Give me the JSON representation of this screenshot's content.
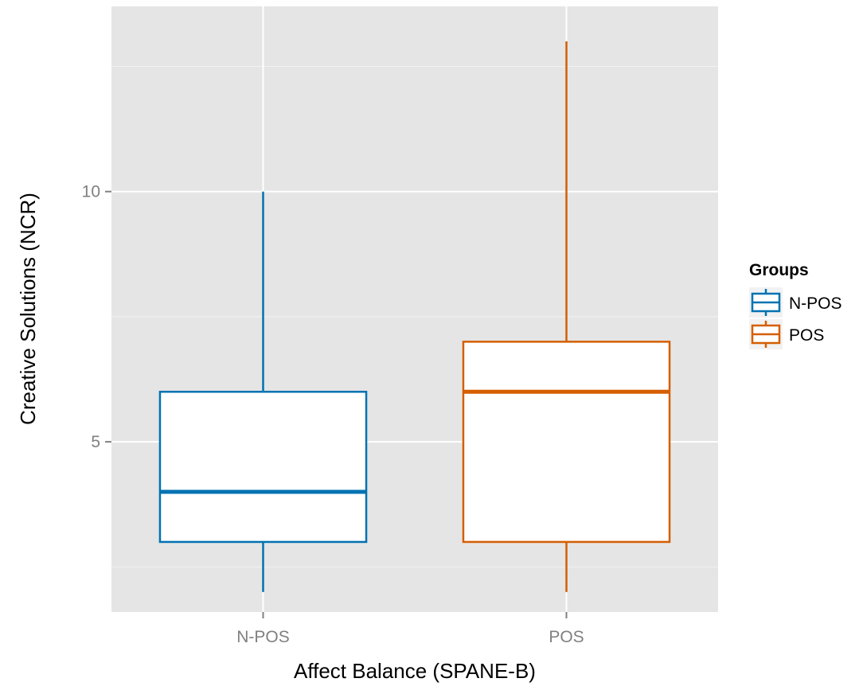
{
  "chart_data": {
    "type": "boxplot",
    "xlabel": "Affect Balance (SPANE-B)",
    "ylabel": "Creative Solutions (NCR)",
    "categories": [
      "N-POS",
      "POS"
    ],
    "ylim": [
      1.6,
      13.7
    ],
    "yticks": [
      5,
      10
    ],
    "grid": true,
    "legend_position": "right",
    "legend": {
      "title": "Groups",
      "entries": [
        "N-POS",
        "POS"
      ]
    },
    "series": [
      {
        "name": "N-POS",
        "color": "#0072b2",
        "whisker_low": 2,
        "q1": 3,
        "median": 4,
        "q3": 6,
        "whisker_high": 10
      },
      {
        "name": "POS",
        "color": "#d55e00",
        "whisker_low": 2,
        "q1": 3,
        "median": 6,
        "q3": 7,
        "whisker_high": 13
      }
    ],
    "colors": {
      "panel_background": "#e5e5e5",
      "grid_major": "#ffffff",
      "grid_minor": "#f2f2f2",
      "tick_text": "#808080"
    }
  }
}
